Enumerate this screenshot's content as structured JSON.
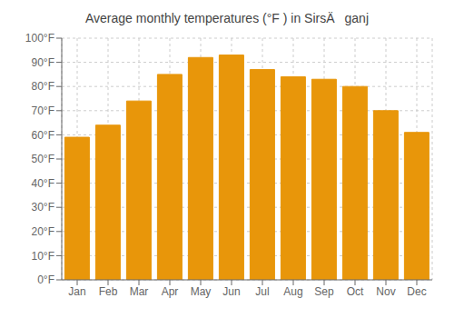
{
  "chart_data": {
    "type": "bar",
    "title": "Average monthly temperatures (°F ) in SirsÄganj",
    "categories": [
      "Jan",
      "Feb",
      "Mar",
      "Apr",
      "May",
      "Jun",
      "Jul",
      "Aug",
      "Sep",
      "Oct",
      "Nov",
      "Dec"
    ],
    "values": [
      59,
      64,
      74,
      85,
      92,
      93,
      87,
      84,
      83,
      80,
      70,
      61
    ],
    "color": "#E8960A",
    "ylim": [
      0,
      100
    ],
    "yticks": [
      {
        "value": 0,
        "label": "0°F"
      },
      {
        "value": 10,
        "label": "10°F"
      },
      {
        "value": 20,
        "label": "20°F"
      },
      {
        "value": 30,
        "label": "30°F"
      },
      {
        "value": 40,
        "label": "40°F"
      },
      {
        "value": 50,
        "label": "50°F"
      },
      {
        "value": 60,
        "label": "60°F"
      },
      {
        "value": 70,
        "label": "70°F"
      },
      {
        "value": 80,
        "label": "80°F"
      },
      {
        "value": 90,
        "label": "90°F"
      },
      {
        "value": 100,
        "label": "100°F"
      }
    ],
    "grid": true
  }
}
